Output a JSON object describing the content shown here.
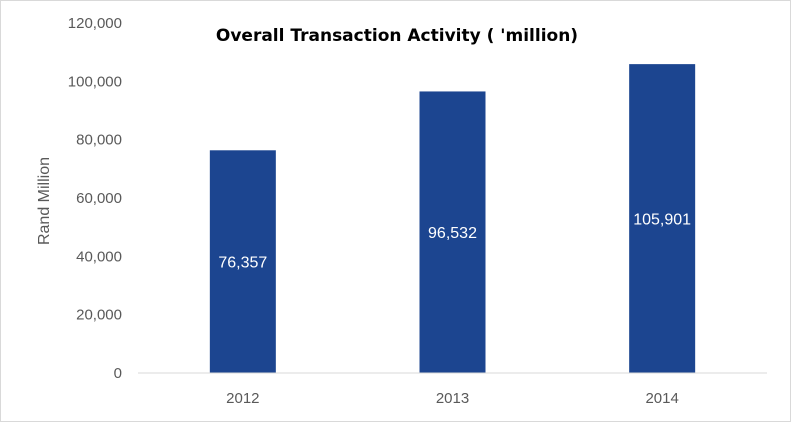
{
  "chart_data": {
    "type": "bar",
    "title": "Overall Transaction Activity ( 'million)",
    "xlabel": "",
    "ylabel": "Rand Million",
    "categories": [
      "2012",
      "2013",
      "2014"
    ],
    "values": [
      76357,
      96532,
      105901
    ],
    "data_labels": [
      "76,357",
      "96,532",
      "105,901"
    ],
    "ylim": [
      0,
      120000
    ],
    "yticks": [
      0,
      20000,
      40000,
      60000,
      80000,
      100000,
      120000
    ],
    "ytick_labels": [
      "0",
      "20,000",
      "40,000",
      "60,000",
      "80,000",
      "100,000",
      "120,000"
    ],
    "grid": false,
    "legend": "none",
    "bar_color": "#1c4590"
  }
}
